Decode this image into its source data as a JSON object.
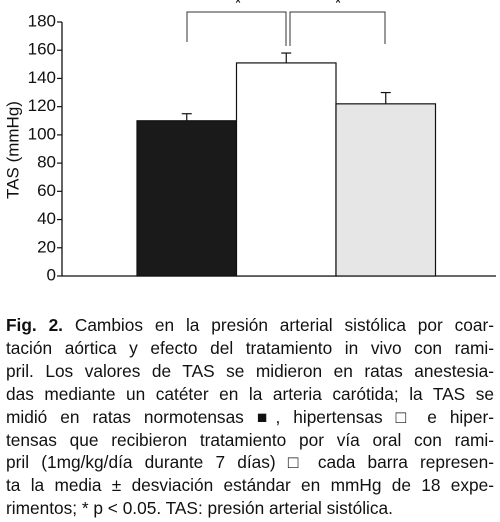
{
  "chart_data": {
    "type": "bar",
    "y_label": "TAS (mmHg)",
    "categories": [
      null,
      null,
      null
    ],
    "values": [
      110,
      151,
      122
    ],
    "errors": [
      5,
      7,
      8
    ],
    "colors": [
      "#1a1a1a",
      "#ffffff",
      "#e6e6e6"
    ],
    "ylim": [
      0,
      180
    ],
    "yticks": [
      0,
      20,
      40,
      60,
      80,
      100,
      120,
      140,
      160,
      180
    ],
    "annotations": [
      "*",
      "*"
    ],
    "caption": {
      "label": "Fig. 2.",
      "lines": [
        " Cambios en la presión arterial sistólica por coar-",
        "tación aórtica y efecto del tratamiento in vivo con rami-",
        "pril. Los valores de TAS se midieron en ratas anestesia-",
        "das mediante un catéter en la arteria carótida; la TAS se",
        "midió en ratas normotensas ■, hipertensas □ e hiper-",
        "tensas que recibieron tratamiento por vía oral con rami-",
        "pril (1mg/kg/día durante 7 días) □ cada barra represen-",
        "ta la media ± desviación estándar en mmHg de 18 expe-",
        "rimentos; * p < 0.05. TAS: presión arterial sistólica."
      ]
    }
  }
}
